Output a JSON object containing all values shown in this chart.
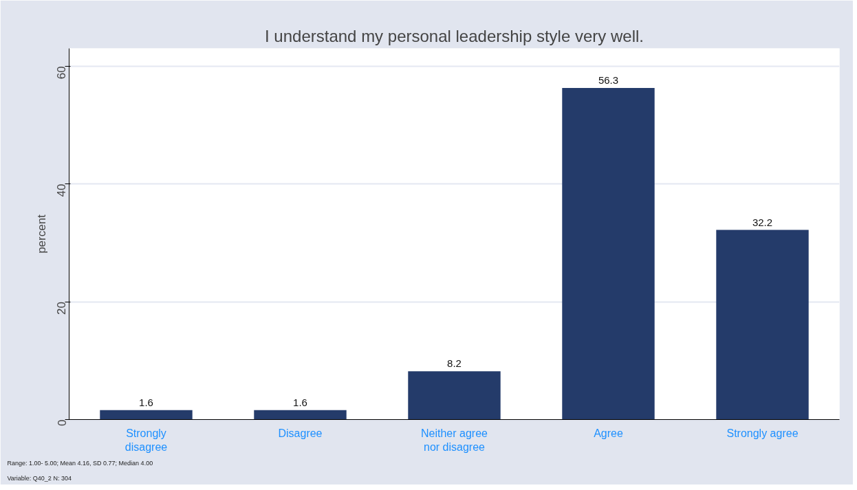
{
  "chart_data": {
    "type": "bar",
    "title": "I understand my personal leadership style very well.",
    "ylabel": "percent",
    "categories": [
      "Strongly disagree",
      "Disagree",
      "Neither agree nor disagree",
      "Agree",
      "Strongly agree"
    ],
    "values": [
      1.6,
      1.6,
      8.2,
      56.3,
      32.2
    ],
    "color": "#243b6a",
    "data_labels": true,
    "ylim": [
      0,
      63
    ],
    "yticks": [
      0,
      20,
      40,
      60
    ],
    "grid": "y",
    "annotations": [
      "Range: 1.00- 5.00; Mean 4.16, SD 0.77; Median 4.00",
      "Variable: Q40_2 N: 304"
    ]
  }
}
